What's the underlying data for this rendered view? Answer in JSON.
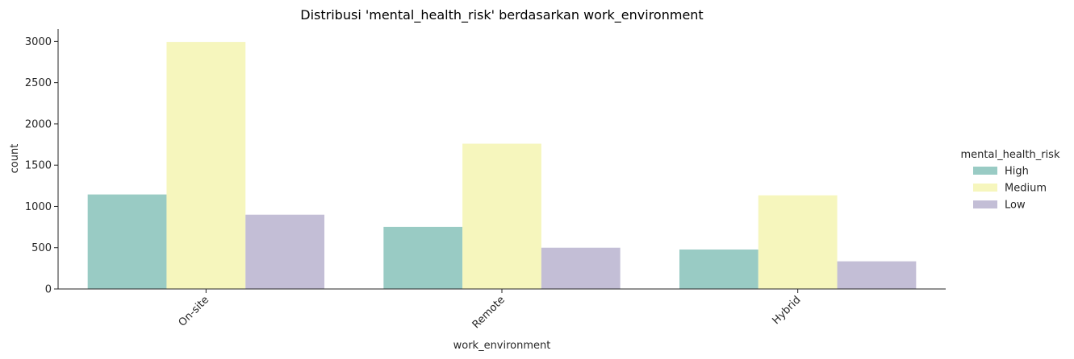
{
  "chart_data": {
    "type": "bar",
    "title": "Distribusi 'mental_health_risk' berdasarkan work_environment",
    "xlabel": "work_environment",
    "ylabel": "count",
    "categories": [
      "On-site",
      "Remote",
      "Hybrid"
    ],
    "ylim": [
      0,
      3150
    ],
    "yticks": [
      0,
      500,
      1000,
      1500,
      2000,
      2500,
      3000
    ],
    "legend": {
      "title": "mental_health_risk",
      "placement": "right"
    },
    "series": [
      {
        "name": "High",
        "color": "#99cbc4",
        "values": [
          1145,
          752,
          478
        ]
      },
      {
        "name": "Medium",
        "color": "#f6f6bd",
        "values": [
          2993,
          1760,
          1135
        ]
      },
      {
        "name": "Low",
        "color": "#c3bed6",
        "values": [
          900,
          500,
          335
        ]
      }
    ]
  }
}
